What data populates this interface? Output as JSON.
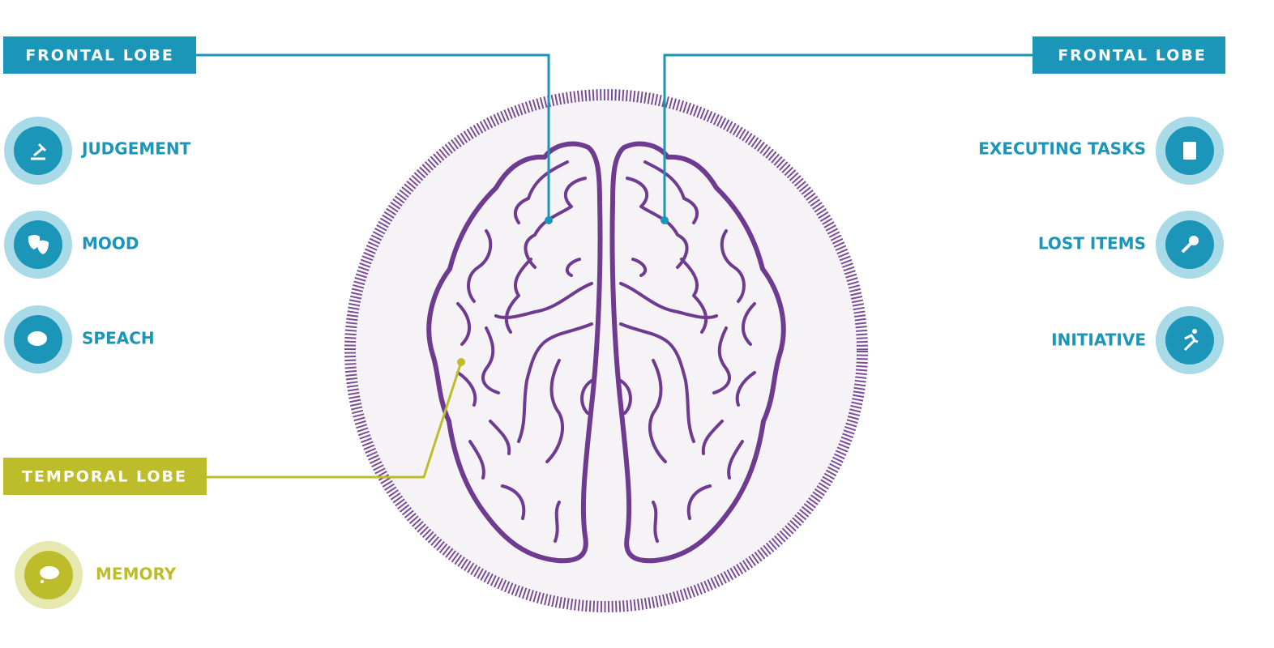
{
  "left_panel": {
    "label": "FRONTAL LOBE",
    "items": [
      "JUDGEMENT",
      "MOOD",
      "SPEACH"
    ]
  },
  "right_panel": {
    "label": "FRONTAL LOBE",
    "items": [
      "EXECUTING TASKS",
      "LOST ITEMS",
      "INITIATIVE"
    ]
  },
  "temporal_panel": {
    "label": "TEMPORAL LOBE",
    "items": [
      "MEMORY"
    ]
  }
}
